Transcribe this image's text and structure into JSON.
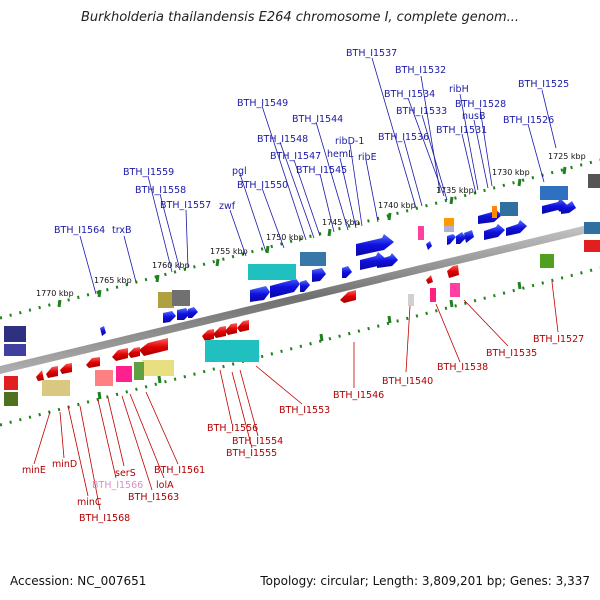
{
  "header": {
    "title": "Burkholderia thailandensis E264 chromosome I, complete genom..."
  },
  "footer": {
    "accession": "Accession: NC_007651",
    "summary": "Topology: circular; Length: 3,809,201 bp; Genes: 3,337"
  },
  "ruler": [
    "1725 kbp",
    "1730 kbp",
    "1735 kbp",
    "1740 kbp",
    "1745 kbp",
    "1750 kbp",
    "1755 kbp",
    "1760 kbp",
    "1765 kbp",
    "1770 kbp"
  ],
  "top_labels": [
    "BTH_I1537",
    "BTH_I1532",
    "BTH_I1534",
    "BTH_I1533",
    "ribH",
    "BTH_I1528",
    "nusB",
    "BTH_I1531",
    "BTH_I1525",
    "BTH_I1526",
    "BTH_I1549",
    "BTH_I1544",
    "BTH_I1548",
    "ribD-1",
    "hemL",
    "BTH_I1536",
    "BTH_I1547",
    "ribE",
    "BTH_I1545",
    "pgl",
    "BTH_I1550",
    "BTH_I1559",
    "BTH_I1558",
    "zwf",
    "BTH_I1557",
    "BTH_I1564",
    "trxB"
  ],
  "bottom_labels": [
    "BTH_I1527",
    "BTH_I1535",
    "BTH_I1538",
    "BTH_I1540",
    "BTH_I1546",
    "BTH_I1553",
    "BTH_I1556",
    "BTH_I1554",
    "BTH_I1555",
    "BTH_I1561",
    "serS",
    "minE",
    "minD",
    "BTH_I1566",
    "lolA",
    "BTH_I1563",
    "minC",
    "BTH_I1568"
  ],
  "colors": {
    "forward": "#1010e0",
    "reverse": "#e00000",
    "backbone": "#808080",
    "ruler_ticks": "#208020",
    "pink_label": "#d890c8"
  }
}
